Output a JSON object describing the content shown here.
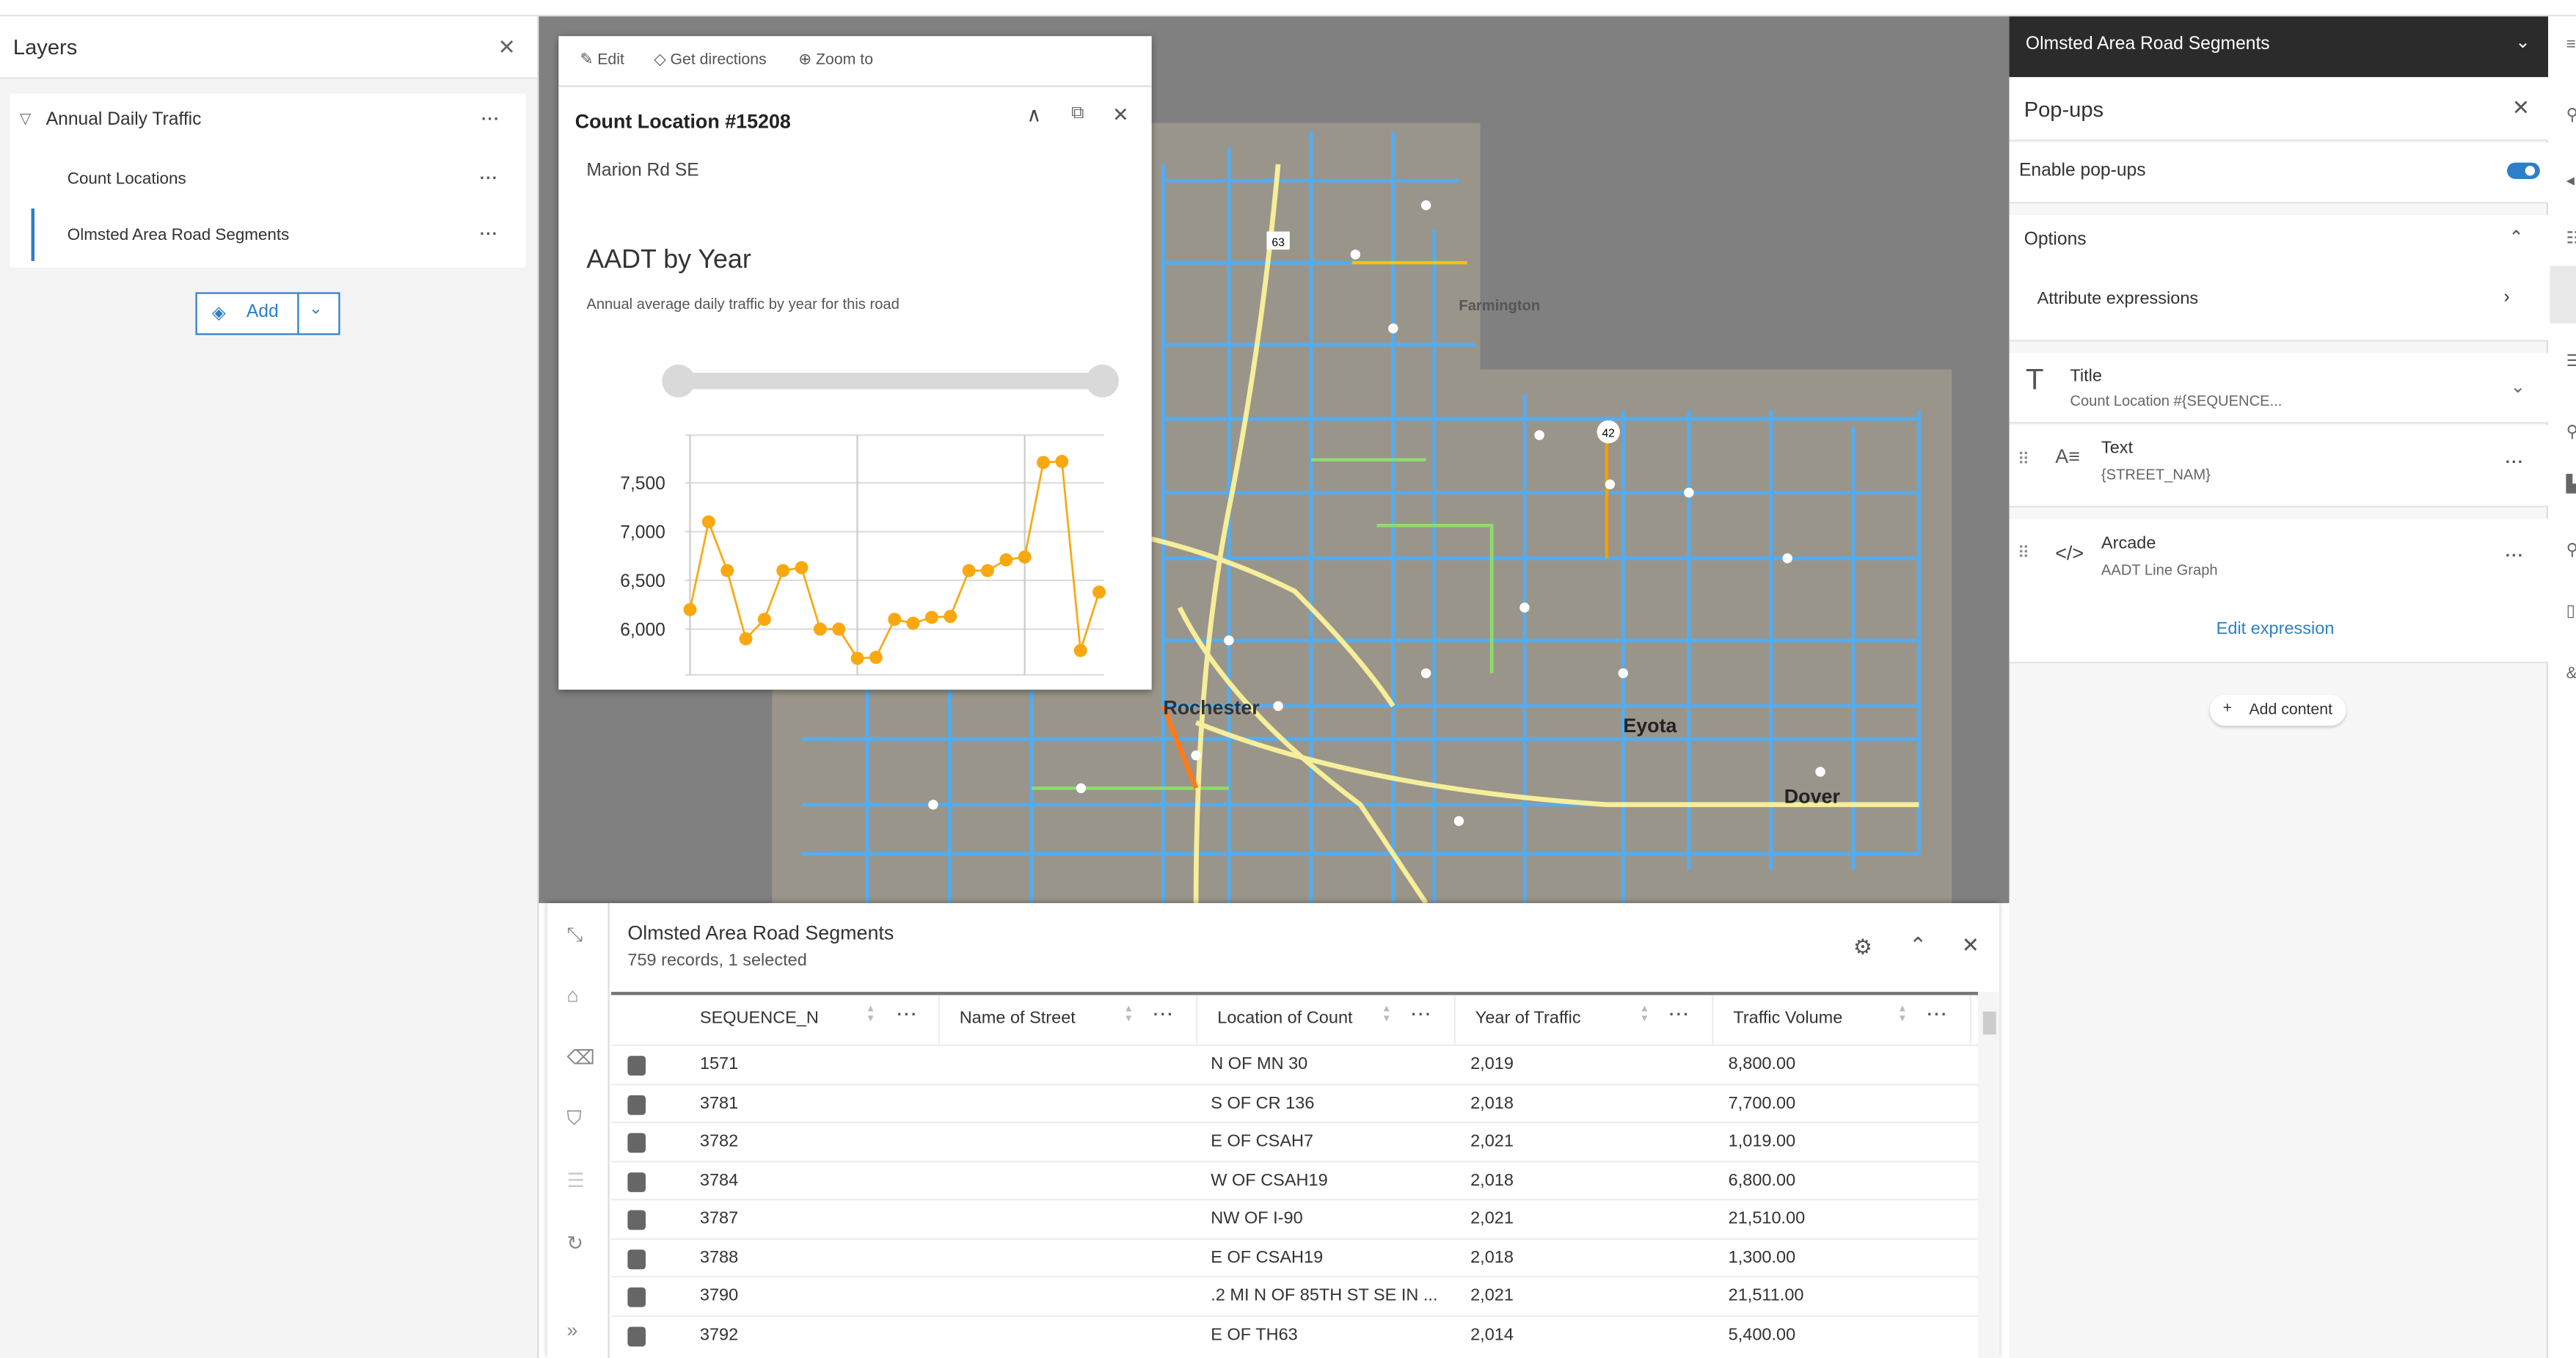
{
  "layers_panel": {
    "title": "Layers",
    "close_icon": "close-icon",
    "group": {
      "label": "Annual Daily Traffic",
      "more": "..."
    },
    "items": [
      {
        "label": "Count Locations",
        "more": "..."
      },
      {
        "label": "Olmsted Area Road Segments",
        "more": "..."
      }
    ],
    "add_label": "Add"
  },
  "map": {
    "labels": [
      "Farmington",
      "Eyota",
      "Dover",
      "Rochester"
    ],
    "shields": [
      "63",
      "42"
    ]
  },
  "popup": {
    "actions": {
      "edit": "Edit",
      "directions": "Get directions",
      "zoom": "Zoom to"
    },
    "title": "Count Location #15208",
    "street": "Marion Rd SE",
    "chart_title": "AADT by Year",
    "chart_subtitle": "Annual average daily traffic by year for this road"
  },
  "chart_data": {
    "type": "line",
    "title": "AADT by Year",
    "subtitle": "Annual average daily traffic by year for this road",
    "xlabel": "",
    "ylabel": "",
    "x": [
      0,
      1,
      2,
      3,
      4,
      5,
      6,
      7,
      8,
      9,
      10,
      11,
      12,
      13,
      14,
      15,
      16,
      17,
      18,
      19,
      20,
      21,
      22
    ],
    "values": [
      6200,
      7100,
      6600,
      5900,
      6100,
      6600,
      6630,
      6000,
      6000,
      5700,
      5710,
      6100,
      6060,
      6120,
      6130,
      6600,
      6600,
      6710,
      6740,
      7710,
      7720,
      5780,
      6380
    ],
    "yticks": [
      "6,000",
      "6,500",
      "7,000",
      "7,500"
    ],
    "ytick_values": [
      6000,
      6500,
      7000,
      7500
    ],
    "ylim": [
      5530,
      7990
    ],
    "x_gridlines": [
      0,
      9,
      18
    ],
    "grid": true,
    "color": "#f9a80f"
  },
  "table": {
    "title": "Olmsted Area Road Segments",
    "subtitle": "759 records, 1 selected",
    "columns": [
      "SEQUENCE_N",
      "Name of Street",
      "Location of Count",
      "Year of Traffic",
      "Traffic Volume"
    ],
    "rows": [
      [
        "1571",
        "",
        "N OF MN 30",
        "2,019",
        "8,800.00"
      ],
      [
        "3781",
        "",
        "S OF CR 136",
        "2,018",
        "7,700.00"
      ],
      [
        "3782",
        "",
        "E OF CSAH7",
        "2,021",
        "1,019.00"
      ],
      [
        "3784",
        "",
        "W OF CSAH19",
        "2,018",
        "6,800.00"
      ],
      [
        "3787",
        "",
        "NW OF I-90",
        "2,021",
        "21,510.00"
      ],
      [
        "3788",
        "",
        "E OF CSAH19",
        "2,018",
        "1,300.00"
      ],
      [
        "3790",
        "",
        ".2 MI N OF 85TH ST SE IN ...",
        "2,021",
        "21,511.00"
      ],
      [
        "3792",
        "",
        "E OF TH63",
        "2,014",
        "5,400.00"
      ]
    ]
  },
  "right_panel": {
    "layer_title": "Olmsted Area Road Segments",
    "section_title": "Pop-ups",
    "enable_label": "Enable pop-ups",
    "enabled": true,
    "options_label": "Options",
    "attr_expr_label": "Attribute expressions",
    "title_item": {
      "label": "Title",
      "value": "Count Location #{SEQUENCE..."
    },
    "text_item": {
      "label": "Text",
      "value": "{STREET_NAM}"
    },
    "arcade_item": {
      "label": "Arcade",
      "value": "AADT Line Graph"
    },
    "edit_expression": "Edit expression",
    "add_content": "Add content",
    "accent": "#2d7fc7"
  }
}
